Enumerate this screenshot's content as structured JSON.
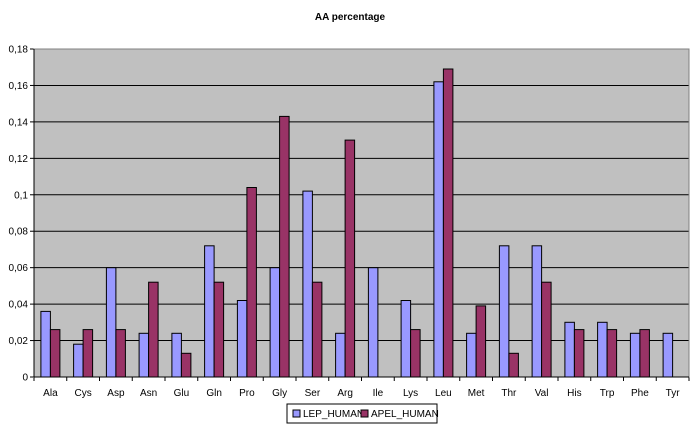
{
  "chart_data": {
    "type": "bar",
    "title": "AA percentage",
    "xlabel": "",
    "ylabel": "",
    "categories": [
      "Ala",
      "Cys",
      "Asp",
      "Asn",
      "Glu",
      "Gln",
      "Pro",
      "Gly",
      "Ser",
      "Arg",
      "Ile",
      "Lys",
      "Leu",
      "Met",
      "Thr",
      "Val",
      "His",
      "Trp",
      "Phe",
      "Tyr"
    ],
    "series": [
      {
        "name": "LEP_HUMAN",
        "color": "#9999FF",
        "values": [
          0.036,
          0.018,
          0.06,
          0.024,
          0.024,
          0.072,
          0.042,
          0.06,
          0.102,
          0.024,
          0.06,
          0.042,
          0.162,
          0.024,
          0.072,
          0.072,
          0.03,
          0.03,
          0.024,
          0.024
        ]
      },
      {
        "name": "APEL_HUMAN",
        "color": "#993366",
        "values": [
          0.026,
          0.026,
          0.026,
          0.052,
          0.013,
          0.052,
          0.104,
          0.143,
          0.052,
          0.13,
          0.0,
          0.026,
          0.169,
          0.039,
          0.013,
          0.052,
          0.026,
          0.026,
          0.026,
          0.0
        ]
      }
    ],
    "ylim": [
      0,
      0.18
    ],
    "yticks": [
      "0",
      "0,02",
      "0,04",
      "0,06",
      "0,08",
      "0,1",
      "0,12",
      "0,14",
      "0,16",
      "0,18"
    ],
    "ytick_values": [
      0,
      0.02,
      0.04,
      0.06,
      0.08,
      0.1,
      0.12,
      0.14,
      0.16,
      0.18
    ],
    "grid": true,
    "legend_position": "bottom",
    "plot_background": "#C0C0C0"
  }
}
